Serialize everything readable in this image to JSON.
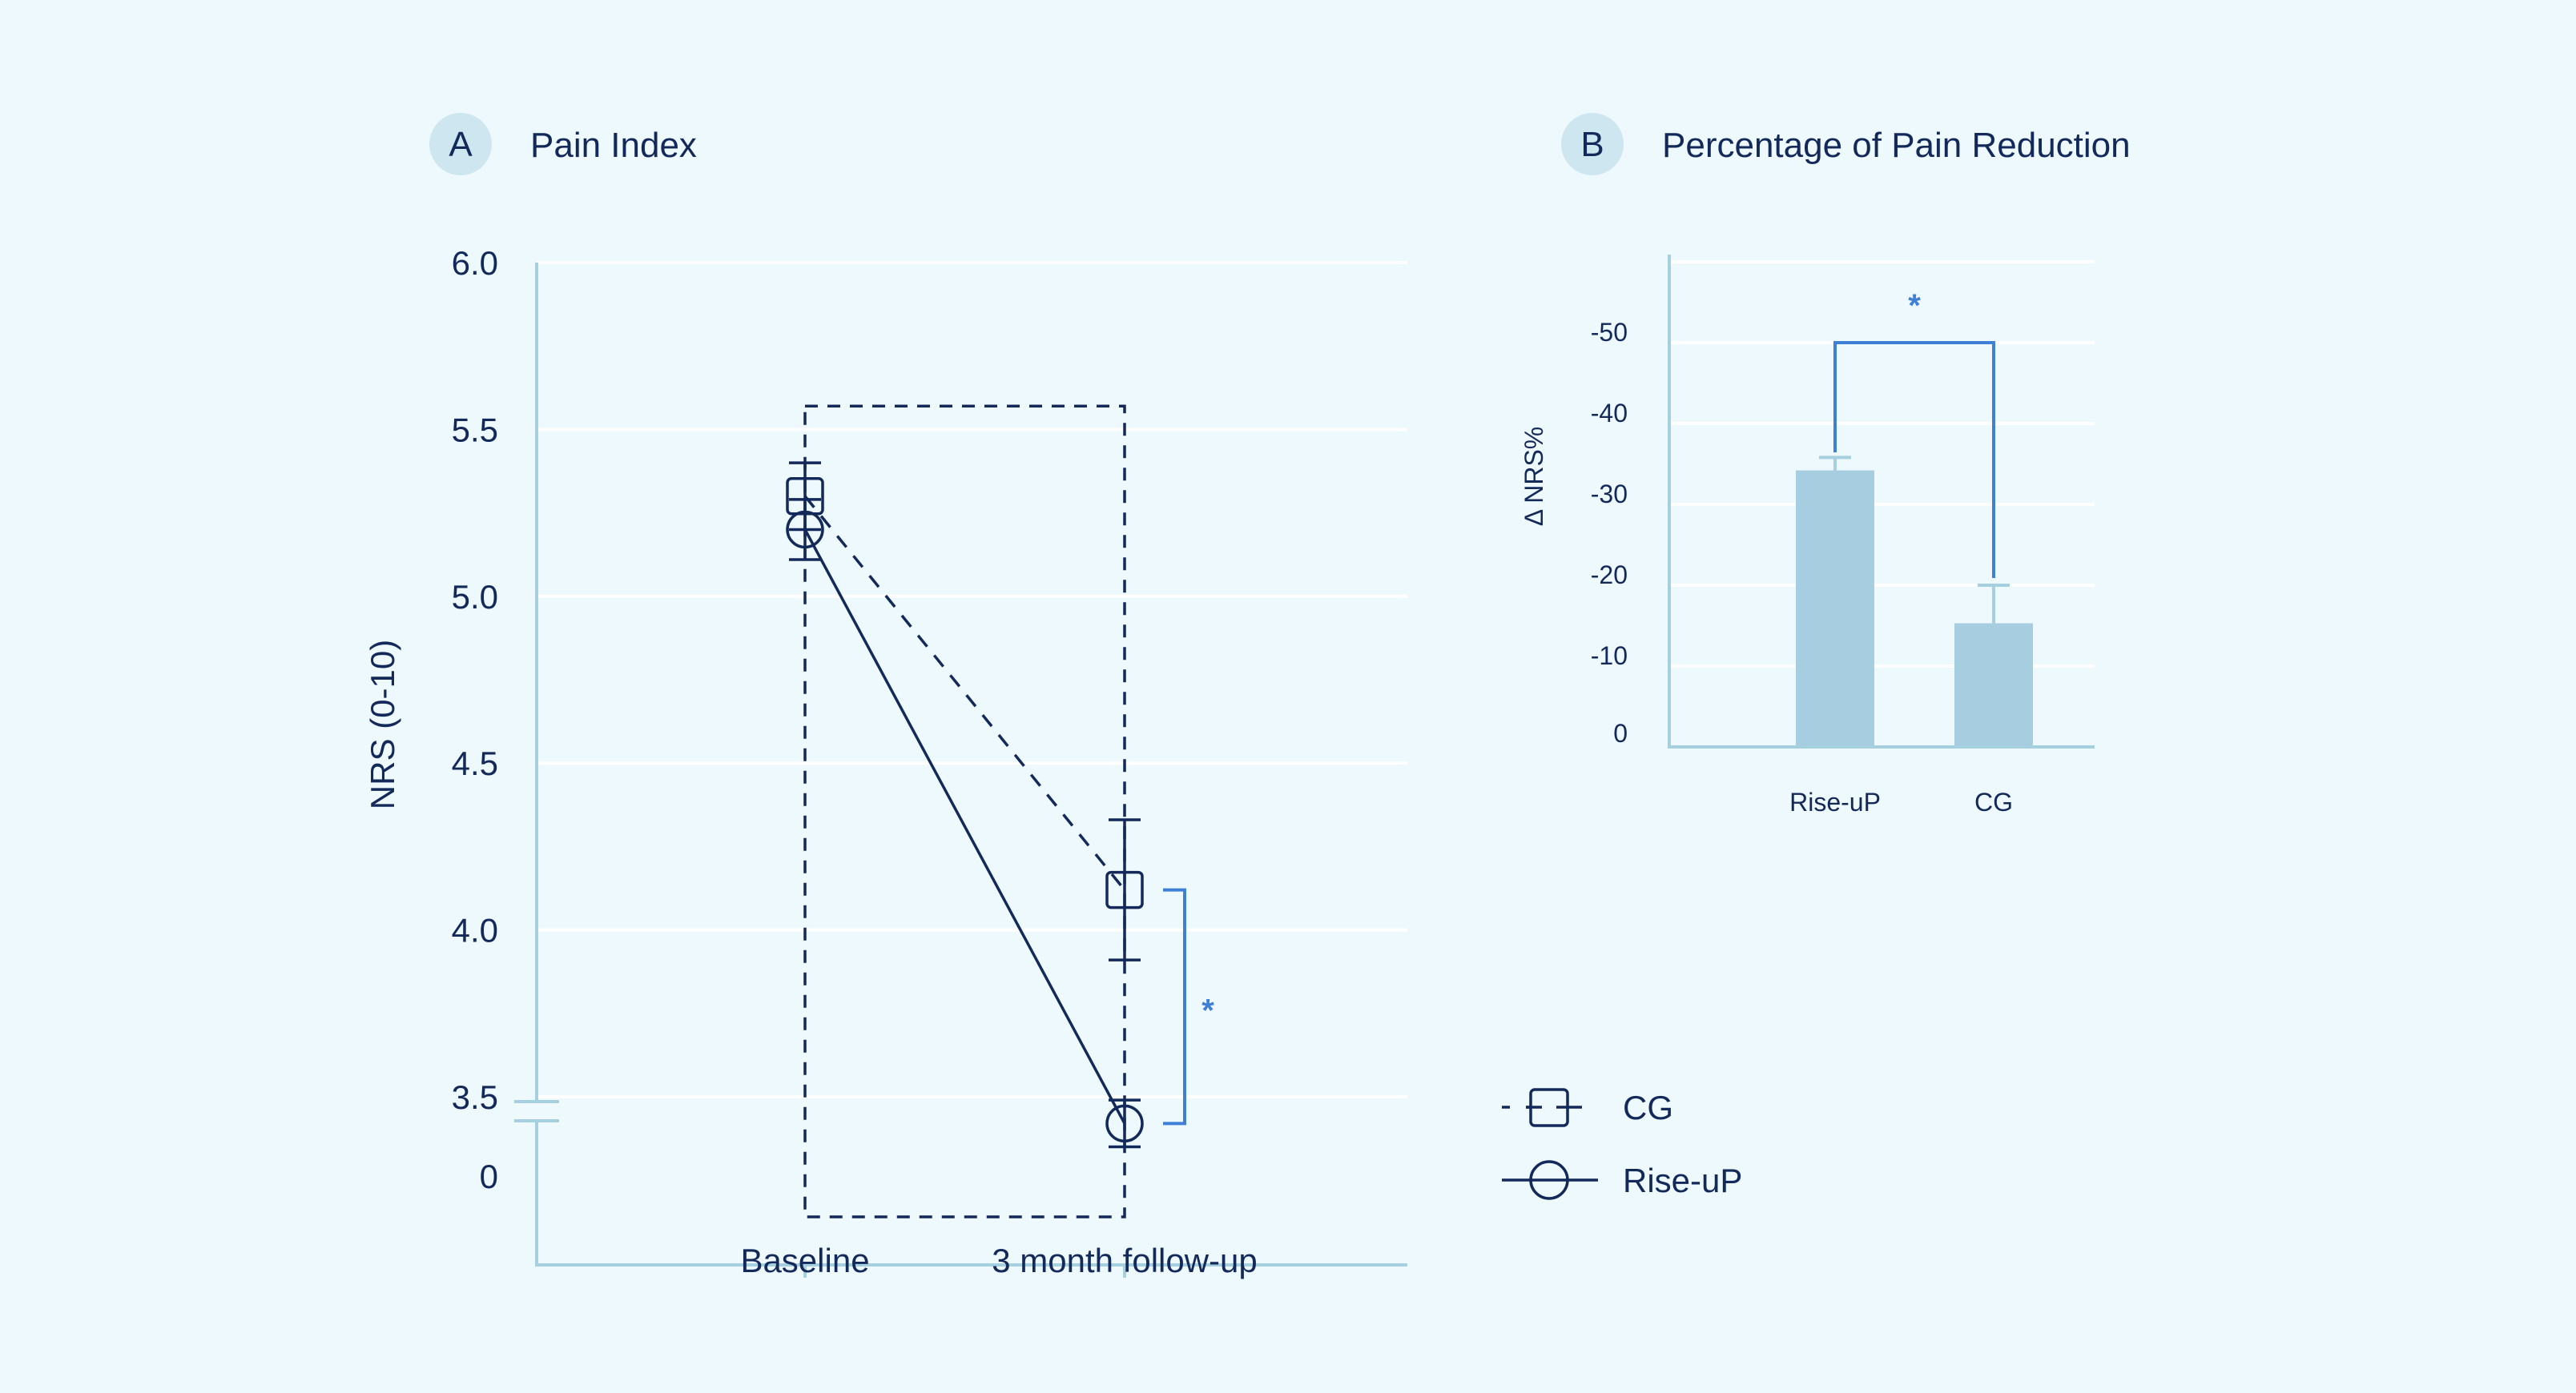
{
  "colors": {
    "background": "#eef9fe",
    "navy": "#13295a",
    "axis": "#a6cfe0",
    "bar": "#a6cde0",
    "significance": "#3f7fd6",
    "badge": "#cde6ef"
  },
  "chart_data": [
    {
      "panel": "A",
      "title": "Pain Index",
      "type": "line",
      "ylabel": "NRS (0-10)",
      "xlabel": "",
      "categories": [
        "Baseline",
        "3 month follow-up"
      ],
      "y_tick_labels": [
        "0",
        "3.5",
        "4.0",
        "4.5",
        "5.0",
        "5.5",
        "6.0"
      ],
      "ylim": [
        3.25,
        6.0
      ],
      "axis_break": true,
      "grid": true,
      "series": [
        {
          "name": "CG",
          "style": "dashed",
          "marker": "square",
          "values": [
            5.3,
            4.12
          ],
          "error": [
            0.1,
            0.21
          ]
        },
        {
          "name": "Rise-uP",
          "style": "solid",
          "marker": "circle",
          "values": [
            5.2,
            3.42
          ],
          "error": [
            0.09,
            0.07
          ]
        }
      ],
      "significance": {
        "label": "*",
        "between": [
          "CG",
          "Rise-uP"
        ],
        "at": "3 month follow-up"
      },
      "legend": {
        "placement": "bottom-right",
        "entries": [
          "CG",
          "Rise-uP"
        ]
      }
    },
    {
      "panel": "B",
      "title": "Percentage of Pain Reduction",
      "type": "bar",
      "ylabel": "Δ NRS%",
      "categories": [
        "Rise-uP",
        "CG"
      ],
      "values": [
        -34.2,
        -15.3
      ],
      "error": [
        1.6,
        4.7
      ],
      "y_tick_labels": [
        "0",
        "-10",
        "-20",
        "-30",
        "-40",
        "-50"
      ],
      "ylim": [
        0,
        -60
      ],
      "grid": true,
      "significance": {
        "label": "*",
        "between": [
          "Rise-uP",
          "CG"
        ]
      }
    }
  ]
}
